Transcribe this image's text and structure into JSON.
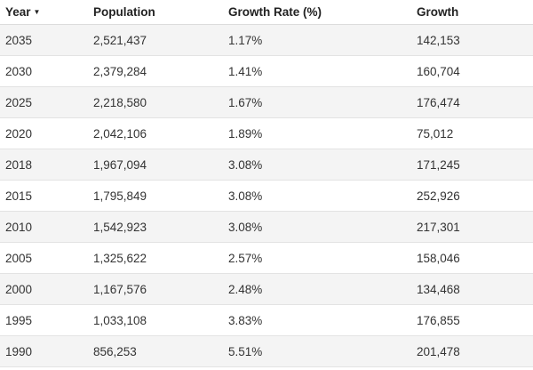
{
  "table": {
    "headers": {
      "year": "Year",
      "population": "Population",
      "growth_rate": "Growth Rate (%)",
      "growth": "Growth"
    },
    "sort": {
      "column": "year",
      "direction": "descending",
      "icon": "caret-down-icon"
    },
    "colors": {
      "growth_rate_text": "#3a9a3a",
      "row_stripe": "#f4f4f4"
    },
    "rows": [
      {
        "year": "2035",
        "population": "2,521,437",
        "growth_rate": "1.17%",
        "growth": "142,153"
      },
      {
        "year": "2030",
        "population": "2,379,284",
        "growth_rate": "1.41%",
        "growth": "160,704"
      },
      {
        "year": "2025",
        "population": "2,218,580",
        "growth_rate": "1.67%",
        "growth": "176,474"
      },
      {
        "year": "2020",
        "population": "2,042,106",
        "growth_rate": "1.89%",
        "growth": "75,012"
      },
      {
        "year": "2018",
        "population": "1,967,094",
        "growth_rate": "3.08%",
        "growth": "171,245"
      },
      {
        "year": "2015",
        "population": "1,795,849",
        "growth_rate": "3.08%",
        "growth": "252,926"
      },
      {
        "year": "2010",
        "population": "1,542,923",
        "growth_rate": "3.08%",
        "growth": "217,301"
      },
      {
        "year": "2005",
        "population": "1,325,622",
        "growth_rate": "2.57%",
        "growth": "158,046"
      },
      {
        "year": "2000",
        "population": "1,167,576",
        "growth_rate": "2.48%",
        "growth": "134,468"
      },
      {
        "year": "1995",
        "population": "1,033,108",
        "growth_rate": "3.83%",
        "growth": "176,855"
      },
      {
        "year": "1990",
        "population": "856,253",
        "growth_rate": "5.51%",
        "growth": "201,478"
      }
    ]
  }
}
